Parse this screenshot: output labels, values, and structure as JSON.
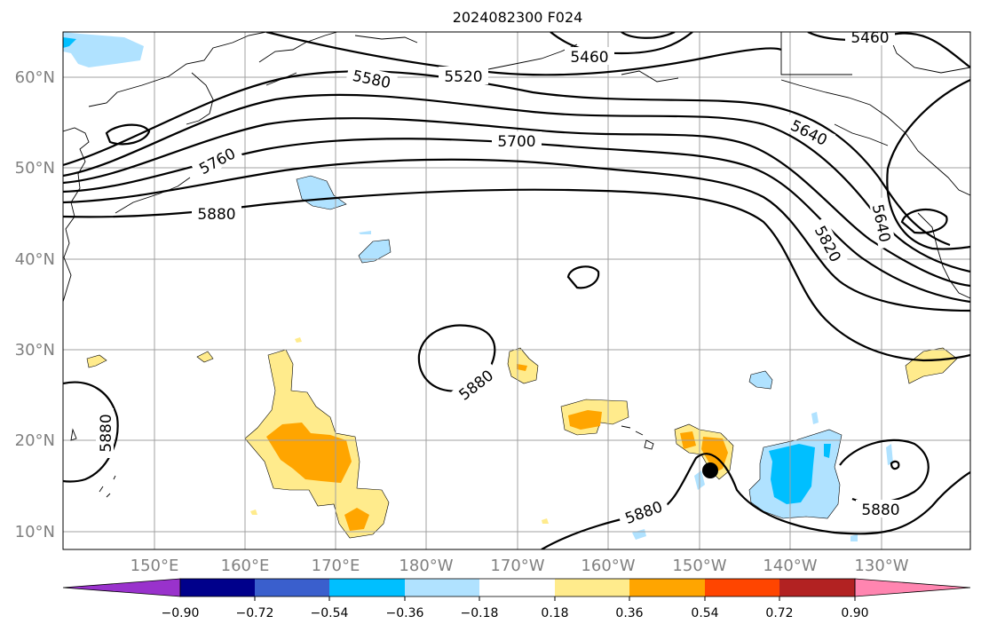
{
  "title": "2024082300 F024",
  "latitude_labels": [
    "60°N",
    "50°N",
    "40°N",
    "30°N",
    "20°N",
    "10°N"
  ],
  "longitude_labels": [
    "150°E",
    "160°E",
    "170°E",
    "180°W",
    "170°W",
    "160°W",
    "150°W",
    "140°W",
    "130°W"
  ],
  "contour_labels": [
    "5460",
    "5460",
    "5520",
    "5580",
    "5700",
    "5640",
    "5760",
    "5880",
    "5640",
    "5820",
    "5880",
    "5880",
    "5880",
    "5880"
  ],
  "colorbar": {
    "tick_labels": [
      "−0.90",
      "−0.72",
      "−0.54",
      "−0.36",
      "−0.18",
      "0.18",
      "0.36",
      "0.54",
      "0.72",
      "0.90"
    ],
    "colors": [
      "#9932cc",
      "#00008b",
      "#3a5fcd",
      "#00bfff",
      "#b0e2ff",
      "#ffffff",
      "#ffeb8c",
      "#ffa500",
      "#ff4500",
      "#b22222",
      "#ff85b0"
    ]
  },
  "marker": {
    "label": "storm-center",
    "color": "#000000"
  }
}
